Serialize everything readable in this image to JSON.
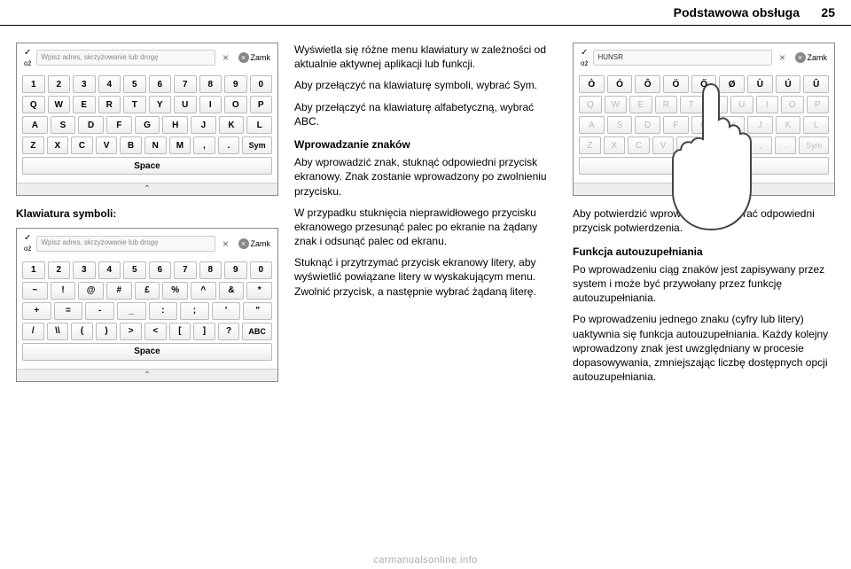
{
  "header": {
    "title": "Podstawowa obsługa",
    "page": "25"
  },
  "col1": {
    "fig1": {
      "ok": "oż",
      "placeholder": "Wpisz adres, skrzyżowanie lub drogę",
      "close": "Zamk",
      "row1": [
        "1",
        "2",
        "3",
        "4",
        "5",
        "6",
        "7",
        "8",
        "9",
        "0"
      ],
      "row2": [
        "Q",
        "W",
        "E",
        "R",
        "T",
        "Y",
        "U",
        "I",
        "O",
        "P"
      ],
      "row3": [
        "A",
        "S",
        "D",
        "F",
        "G",
        "H",
        "J",
        "K",
        "L"
      ],
      "row4": [
        "Z",
        "X",
        "C",
        "V",
        "B",
        "N",
        "M",
        ",",
        ".",
        "Sym"
      ],
      "space": "Space"
    },
    "captionSymbol": "Klawiatura symboli:",
    "fig2": {
      "ok": "oż",
      "placeholder": "Wpisz adres, skrzyżowanie lub drogę",
      "close": "Zamk",
      "row1": [
        "1",
        "2",
        "3",
        "4",
        "5",
        "6",
        "7",
        "8",
        "9",
        "0"
      ],
      "row2": [
        "~",
        "!",
        "@",
        "#",
        "£",
        "%",
        "^",
        "&",
        "*"
      ],
      "row3": [
        "+",
        "=",
        "-",
        "_",
        ":",
        ";",
        "'",
        "\""
      ],
      "row4": [
        "/",
        "\\\\",
        "(",
        ")",
        ">",
        "<",
        "[",
        "]",
        "?",
        "ABC"
      ],
      "space": "Space"
    }
  },
  "col2": {
    "p1": "Wyświetla się różne menu klawiatury w zależności od aktualnie aktywnej aplikacji lub funkcji.",
    "p2": "Aby przełączyć na klawiaturę symboli, wybrać Sym.",
    "p3": "Aby przełączyć na klawiaturę alfabetyczną, wybrać ABC.",
    "h1": "Wprowadzanie znaków",
    "p4": "Aby wprowadzić znak, stuknąć odpowiedni przycisk ekranowy. Znak zostanie wprowadzony po zwolnieniu przycisku.",
    "p5": "W przypadku stuknięcia nieprawidłowego przycisku ekranowego przesunąć palec po ekranie na żądany znak i odsunąć palec od ekranu.",
    "p6": "Stuknąć i przytrzymać przycisk ekranowy litery, aby wyświetlić powiązane litery w wyskakującym menu. Zwolnić przycisk, a następnie wybrać żądaną literę."
  },
  "col3": {
    "fig3": {
      "ok": "oż",
      "placeholder": "HUNSR",
      "close": "Zamk",
      "popup": [
        "Ò",
        "Ó",
        "Ô",
        "Ö",
        "Ő",
        "Ø",
        "Ù",
        "Ú",
        "Û"
      ],
      "row2": [
        "Q",
        "W",
        "E",
        "R",
        "T",
        "Y",
        "U",
        "I",
        "O",
        "P"
      ],
      "row3": [
        "A",
        "S",
        "D",
        "F",
        "G",
        "H",
        "J",
        "K",
        "L"
      ],
      "row4": [
        "Z",
        "X",
        "C",
        "V",
        "B",
        "N",
        "M",
        ",",
        ".",
        "Sym"
      ],
      "space": "Space"
    },
    "p1": "Aby potwierdzić wprowadzenie, wybrać odpowiedni przycisk potwierdzenia.",
    "h1": "Funkcja autouzupełniania",
    "p2": "Po wprowadzeniu ciąg znaków jest zapisywany przez system i może być przywołany przez funkcję autouzupełniania.",
    "p3": "Po wprowadzeniu jednego znaku (cyfry lub litery) uaktywnia się funkcja autouzupełniania. Każdy kolejny wprowadzony znak jest uwzględniany w procesie dopasowywania, zmniejszając liczbę dostępnych opcji autouzupełniania."
  },
  "footer": "carmanualsonline.info"
}
